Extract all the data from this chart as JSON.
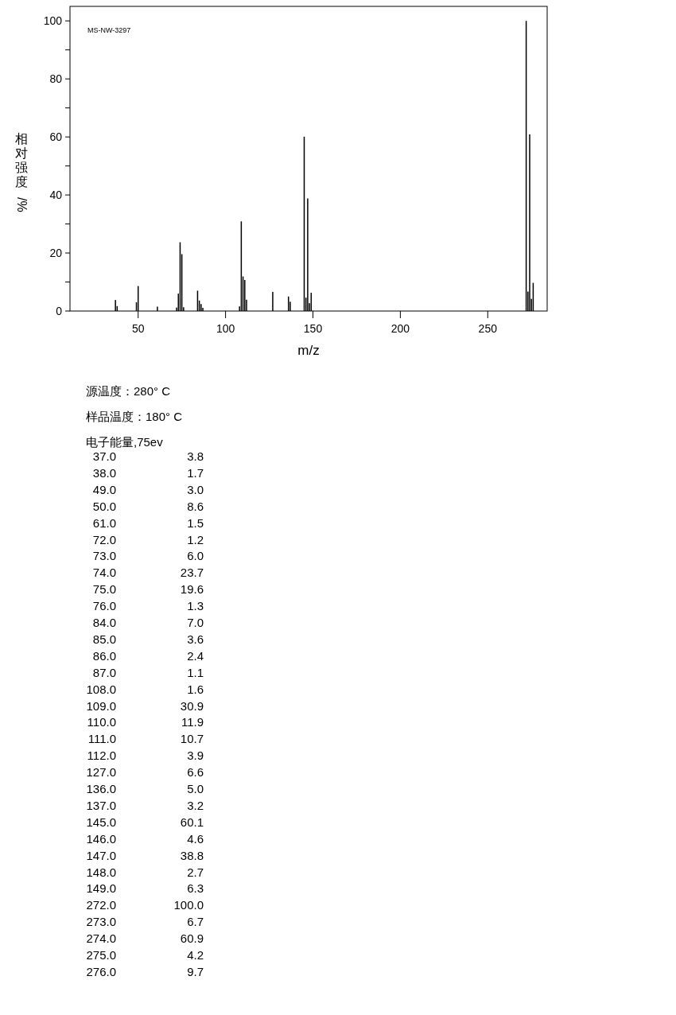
{
  "chart_data": [
    {
      "type": "bar",
      "xlabel": "m/z",
      "ylabel": "相对强度/%",
      "x": [
        37,
        38,
        49,
        50,
        61,
        72,
        73,
        74,
        75,
        76,
        84,
        85,
        86,
        87,
        108,
        109,
        110,
        111,
        112,
        127,
        136,
        137,
        145,
        146,
        147,
        148,
        149,
        272,
        273,
        274,
        275,
        276
      ],
      "values": [
        3.8,
        1.7,
        3.0,
        8.6,
        1.5,
        1.2,
        6.0,
        23.7,
        19.6,
        1.3,
        7.0,
        3.6,
        2.4,
        1.1,
        1.6,
        30.9,
        11.9,
        10.7,
        3.9,
        6.6,
        5.0,
        3.2,
        60.1,
        4.6,
        38.8,
        2.7,
        6.3,
        100.0,
        6.7,
        60.9,
        4.2,
        9.7
      ],
      "color": "#000000",
      "xlim": [
        11,
        284
      ],
      "xticks": [
        50,
        100,
        150,
        200,
        250
      ],
      "ylim": [
        0,
        105
      ],
      "yticks": [
        0,
        {
          "value": 10,
          "label": null
        },
        20,
        {
          "value": 30,
          "label": null
        },
        40,
        {
          "value": 50,
          "label": null
        },
        60,
        {
          "value": 70,
          "label": null
        },
        80,
        {
          "value": 90,
          "label": null
        },
        100
      ],
      "annotations": [
        "MS-NW-3297"
      ]
    },
    {
      "type": "other",
      "annotations": [
        "源温度：280° C",
        "样品温度：180° C",
        "电子能量,75ev"
      ],
      "categories": [
        "37.0",
        "38.0",
        "49.0",
        "50.0",
        "61.0",
        "72.0",
        "73.0",
        "74.0",
        "75.0",
        "76.0",
        "84.0",
        "85.0",
        "86.0",
        "87.0",
        "108.0",
        "109.0",
        "110.0",
        "111.0",
        "112.0",
        "127.0",
        "136.0",
        "137.0",
        "145.0",
        "146.0",
        "147.0",
        "148.0",
        "149.0",
        "272.0",
        "273.0",
        "274.0",
        "275.0",
        "276.0"
      ],
      "value_labels": [
        "3.8",
        "1.7",
        "3.0",
        "8.6",
        "1.5",
        "1.2",
        "6.0",
        "23.7",
        "19.6",
        "1.3",
        "7.0",
        "3.6",
        "2.4",
        "1.1",
        "1.6",
        "30.9",
        "11.9",
        "10.7",
        "3.9",
        "6.6",
        "5.0",
        "3.2",
        "60.1",
        "4.6",
        "38.8",
        "2.7",
        "6.3",
        "100.0",
        "6.7",
        "60.9",
        "4.2",
        "9.7"
      ]
    }
  ]
}
